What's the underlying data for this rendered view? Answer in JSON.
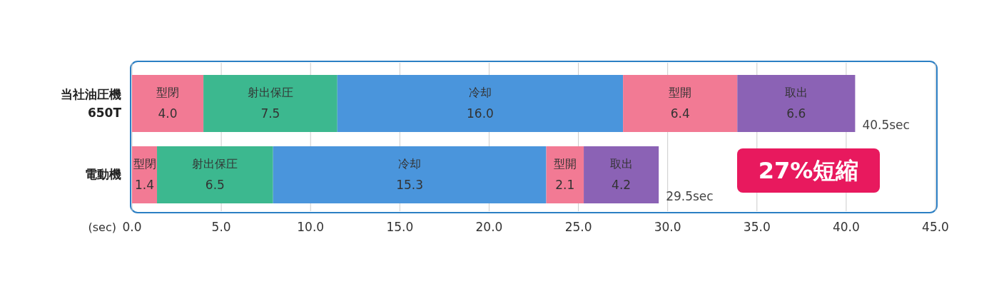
{
  "chart_data": {
    "type": "bar",
    "orientation": "horizontal",
    "stacked": true,
    "categories": [
      "当社油圧機\n650T",
      "電動機"
    ],
    "series": [
      {
        "name": "型閉",
        "color": "#f27a94",
        "values": [
          4.0,
          1.4
        ],
        "value_labels": [
          "4.0",
          "1.4"
        ]
      },
      {
        "name": "射出保圧",
        "color": "#3cb88f",
        "values": [
          7.5,
          6.5
        ],
        "value_labels": [
          "7.5",
          "6.5"
        ]
      },
      {
        "name": "冷却",
        "color": "#4a95dc",
        "values": [
          16.0,
          15.3
        ],
        "value_labels": [
          "16.0",
          "15.3"
        ]
      },
      {
        "name": "型開",
        "color": "#f27a94",
        "values": [
          6.4,
          2.1
        ],
        "value_labels": [
          "6.4",
          "2.1"
        ]
      },
      {
        "name": "取出",
        "color": "#8b62b5",
        "values": [
          6.6,
          4.2
        ],
        "value_labels": [
          "6.6",
          "4.2"
        ]
      }
    ],
    "totals": [
      "40.5sec",
      "29.5sec"
    ],
    "xlim": [
      0,
      45
    ],
    "xticks": [
      {
        "value": 0,
        "label": "0.0"
      },
      {
        "value": 5,
        "label": "5.0"
      },
      {
        "value": 10,
        "label": "10.0"
      },
      {
        "value": 15,
        "label": "15.0"
      },
      {
        "value": 20,
        "label": "20.0"
      },
      {
        "value": 25,
        "label": "25.0"
      },
      {
        "value": 30,
        "label": "30.0"
      },
      {
        "value": 35,
        "label": "35.0"
      },
      {
        "value": 40,
        "label": "40.0"
      },
      {
        "value": 45,
        "label": "45.0"
      }
    ],
    "xlabel": "(sec)",
    "grid": "x",
    "annotations": [
      "27%短縮"
    ]
  }
}
